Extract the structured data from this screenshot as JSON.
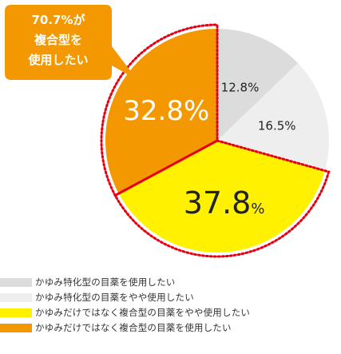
{
  "callout": {
    "lines": [
      "70.7%が",
      "複合型を",
      "使用したい"
    ],
    "color": "#f39800"
  },
  "chart_data": {
    "type": "pie",
    "title": "",
    "slices": [
      {
        "label": "かゆみ特化型の目薬を使用したい",
        "value": 12.8,
        "display": "12.8%",
        "color": "#dcdcdc"
      },
      {
        "label": "かゆみ特化型の目薬をやや使用したい",
        "value": 16.5,
        "display": "16.5%",
        "color": "#eeeeee"
      },
      {
        "label": "かゆみだけではなく複合型の目薬をやや使用したい",
        "value": 37.8,
        "display_value": "37.8",
        "display_unit": "%",
        "color": "#fff100"
      },
      {
        "label": "かゆみだけではなく複合型の目薬を使用したい",
        "value": 32.8,
        "display": "32.8%",
        "color": "#f39800"
      }
    ]
  },
  "legend": [
    {
      "label": "かゆみ特化型の目薬を使用したい",
      "color": "#dcdcdc"
    },
    {
      "label": "かゆみ特化型の目薬をやや使用したい",
      "color": "#eeeeee"
    },
    {
      "label": "かゆみだけではなく複合型の目薬をやや使用したい",
      "color": "#fff100"
    },
    {
      "label": "かゆみだけではなく複合型の目薬を使用したい",
      "color": "#f39800"
    }
  ]
}
